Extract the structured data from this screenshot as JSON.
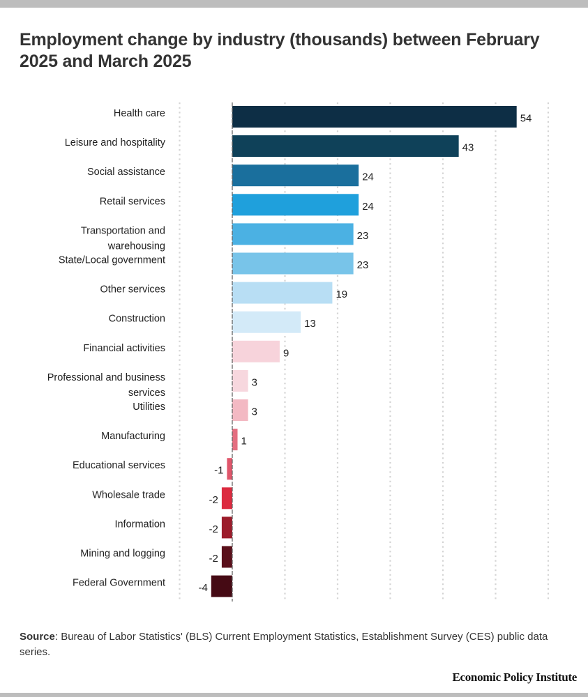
{
  "chart_data": {
    "type": "bar",
    "orientation": "horizontal",
    "title": "Employment change by industry (thousands) between February 2025 and March 2025",
    "xlabel": "",
    "ylabel": "",
    "xlim": [
      -10,
      60
    ],
    "grid": true,
    "grid_step": 10,
    "categories": [
      "Health care",
      "Leisure and hospitality",
      "Social assistance",
      "Retail services",
      "Transportation and warehousing",
      "State/Local government",
      "Other services",
      "Construction",
      "Financial activities",
      "Professional and business services",
      "Utilities",
      "Manufacturing",
      "Educational services",
      "Wholesale trade",
      "Information",
      "Mining and logging",
      "Federal Government"
    ],
    "category_lines": [
      [
        "Health care"
      ],
      [
        "Leisure and hospitality"
      ],
      [
        "Social assistance"
      ],
      [
        "Retail services"
      ],
      [
        "Transportation and",
        "warehousing"
      ],
      [
        "State/Local government"
      ],
      [
        "Other services"
      ],
      [
        "Construction"
      ],
      [
        "Financial activities"
      ],
      [
        "Professional and business",
        "services"
      ],
      [
        "Utilities"
      ],
      [
        "Manufacturing"
      ],
      [
        "Educational services"
      ],
      [
        "Wholesale trade"
      ],
      [
        "Information"
      ],
      [
        "Mining and logging"
      ],
      [
        "Federal Government"
      ]
    ],
    "values": [
      54,
      43,
      24,
      24,
      23,
      23,
      19,
      13,
      9,
      3,
      3,
      1,
      -1,
      -2,
      -2,
      -2,
      -4
    ],
    "colors": [
      "#0d2e45",
      "#0f4159",
      "#1a6f9d",
      "#1fa0dc",
      "#4bb1e3",
      "#78c4e9",
      "#b8def4",
      "#d3eaf8",
      "#f7d3db",
      "#f7d7de",
      "#f3b9c3",
      "#e46e80",
      "#e0566b",
      "#dc2a3f",
      "#9c1b2a",
      "#5a0f1a",
      "#450a14"
    ]
  },
  "source": {
    "label": "Source",
    "text": ": Bureau of Labor Statistics' (BLS) Current Employment Statistics, Establishment Survey (CES) public data series."
  },
  "brand": "Economic Policy Institute"
}
